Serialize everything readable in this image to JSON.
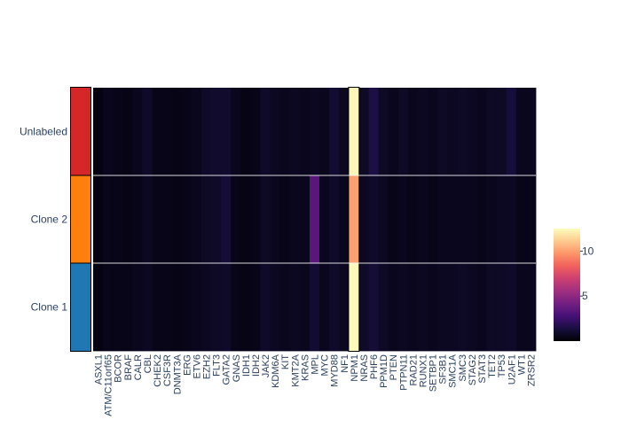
{
  "chart_data": {
    "type": "heatmap",
    "title": "",
    "xlabel": "",
    "ylabel": "",
    "genes": [
      "ASXL1",
      "ATM/C11orf65",
      "BCOR",
      "BRAF",
      "CALR",
      "CBL",
      "CHEK2",
      "CSF3R",
      "DNMT3A",
      "ERG",
      "ETV6",
      "EZH2",
      "FLT3",
      "GATA2",
      "GNAS",
      "IDH1",
      "IDH2",
      "JAK2",
      "KDM6A",
      "KIT",
      "KMT2A",
      "KRAS",
      "MPL",
      "MYC",
      "MYD88",
      "NF1",
      "NPM1",
      "NRAS",
      "PHF6",
      "PPM1D",
      "PTEN",
      "PTPN11",
      "RAD21",
      "RUNX1",
      "SETBP1",
      "SF3B1",
      "SMC1A",
      "SMC3",
      "STAG2",
      "STAT3",
      "TET2",
      "TP53",
      "U2AF1",
      "WT1",
      "ZRSR2"
    ],
    "rows": [
      "Unlabeled",
      "Clone 2",
      "Clone 1"
    ],
    "row_colors": [
      "#d62728",
      "#ff7f0e",
      "#1f77b4"
    ],
    "values": [
      [
        0.3,
        0.6,
        0.5,
        0.4,
        0.6,
        0.9,
        0.5,
        0.5,
        0.4,
        0.5,
        0.6,
        0.9,
        1.0,
        1.0,
        0.6,
        0.4,
        0.5,
        0.9,
        0.7,
        0.6,
        0.7,
        0.6,
        0.7,
        0.6,
        1.1,
        0.7,
        12.3,
        0.8,
        1.5,
        0.8,
        0.6,
        0.8,
        0.6,
        0.7,
        0.6,
        0.8,
        0.7,
        0.8,
        0.7,
        0.6,
        0.8,
        0.8,
        1.3,
        0.6,
        0.6
      ],
      [
        0.3,
        0.5,
        0.5,
        0.4,
        0.5,
        0.7,
        0.5,
        0.5,
        0.4,
        0.5,
        0.6,
        0.8,
        0.9,
        1.2,
        0.5,
        0.4,
        0.5,
        0.8,
        0.6,
        0.5,
        0.6,
        0.6,
        3.4,
        0.6,
        0.9,
        0.6,
        10.0,
        0.7,
        0.9,
        0.7,
        0.5,
        0.6,
        0.5,
        0.6,
        0.5,
        0.6,
        0.6,
        0.6,
        0.6,
        0.5,
        0.6,
        0.7,
        0.7,
        0.5,
        0.5
      ],
      [
        0.3,
        0.5,
        0.5,
        0.5,
        0.6,
        0.7,
        0.5,
        0.5,
        0.4,
        0.5,
        0.6,
        0.7,
        0.8,
        0.9,
        0.5,
        0.4,
        0.5,
        0.9,
        0.7,
        0.6,
        0.7,
        0.6,
        1.1,
        0.6,
        0.9,
        0.7,
        12.4,
        0.9,
        1.2,
        0.8,
        0.6,
        0.7,
        0.6,
        0.7,
        0.6,
        0.7,
        0.7,
        0.8,
        0.7,
        0.6,
        0.8,
        0.8,
        0.9,
        0.6,
        0.6
      ]
    ],
    "zmin": 0,
    "zmax": 12.5,
    "colorbar": {
      "ticks": [
        5,
        10
      ],
      "colorscale": [
        "#000004",
        "#180f3e",
        "#451077",
        "#721f81",
        "#9f2f7f",
        "#cd4071",
        "#f1605d",
        "#fd9567",
        "#feca8d",
        "#fcfdbf"
      ]
    }
  }
}
